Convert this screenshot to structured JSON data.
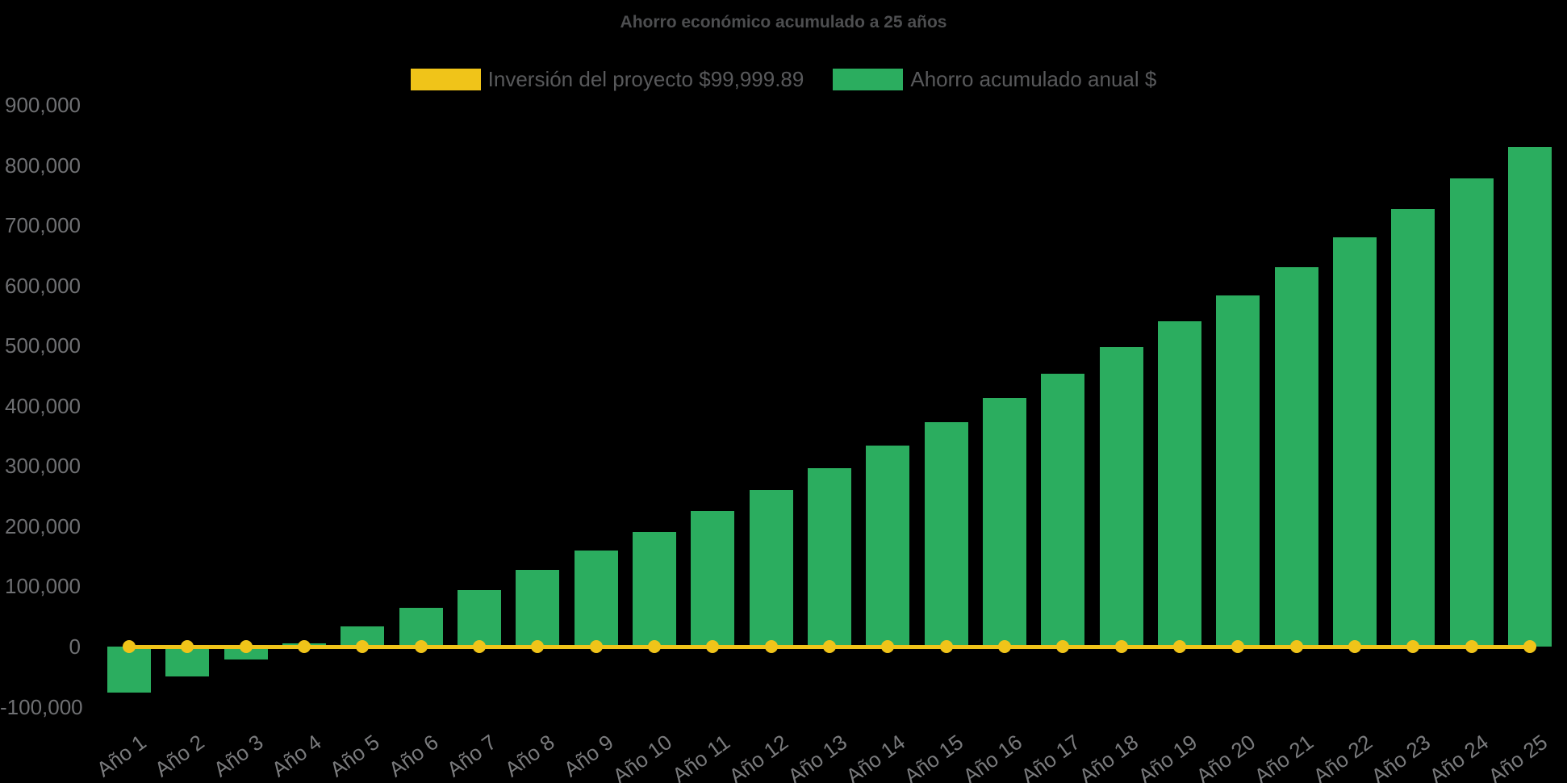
{
  "title": "Ahorro económico acumulado a 25 años",
  "colors": {
    "background": "#000000",
    "bar": "#2BAD5F",
    "line": "#F0C419",
    "title_text": "#4D4E50",
    "legend_text": "#58595B",
    "tick_text": "#6F7073"
  },
  "legend": {
    "items": [
      {
        "label": "Inversión del proyecto $99,999.89",
        "color": "#F0C419",
        "series": "line"
      },
      {
        "label": "Ahorro acumulado anual $",
        "color": "#2BAD5F",
        "series": "bar"
      }
    ]
  },
  "chart_data": {
    "type": "bar",
    "title": "Ahorro económico acumulado a 25 años",
    "categories": [
      "Año 1",
      "Año 2",
      "Año 3",
      "Año 4",
      "Año 5",
      "Año 6",
      "Año 7",
      "Año 8",
      "Año 9",
      "Año 10",
      "Año 11",
      "Año 12",
      "Año 13",
      "Año 14",
      "Año 15",
      "Año 16",
      "Año 17",
      "Año 18",
      "Año 19",
      "Año 20",
      "Año 21",
      "Año 22",
      "Año 23",
      "Año 24",
      "Año 25"
    ],
    "series": [
      {
        "name": "Inversión del proyecto $99,999.89",
        "type": "line",
        "color": "#F0C419",
        "values": [
          0,
          0,
          0,
          0,
          0,
          0,
          0,
          0,
          0,
          0,
          0,
          0,
          0,
          0,
          0,
          0,
          0,
          0,
          0,
          0,
          0,
          0,
          0,
          0,
          0
        ]
      },
      {
        "name": "Ahorro acumulado anual $",
        "type": "bar",
        "color": "#2BAD5F",
        "values": [
          -76000,
          -49000,
          -22000,
          5000,
          34000,
          65000,
          94000,
          127000,
          159000,
          191000,
          225000,
          260000,
          296000,
          334000,
          373000,
          413000,
          454000,
          497000,
          540000,
          583000,
          630000,
          680000,
          727000,
          778000,
          830000
        ]
      }
    ],
    "xlabel": "",
    "ylabel": "",
    "ylim": [
      -100000,
      900000
    ],
    "ytick_step": 100000,
    "grid": false,
    "legend_position": "top"
  }
}
